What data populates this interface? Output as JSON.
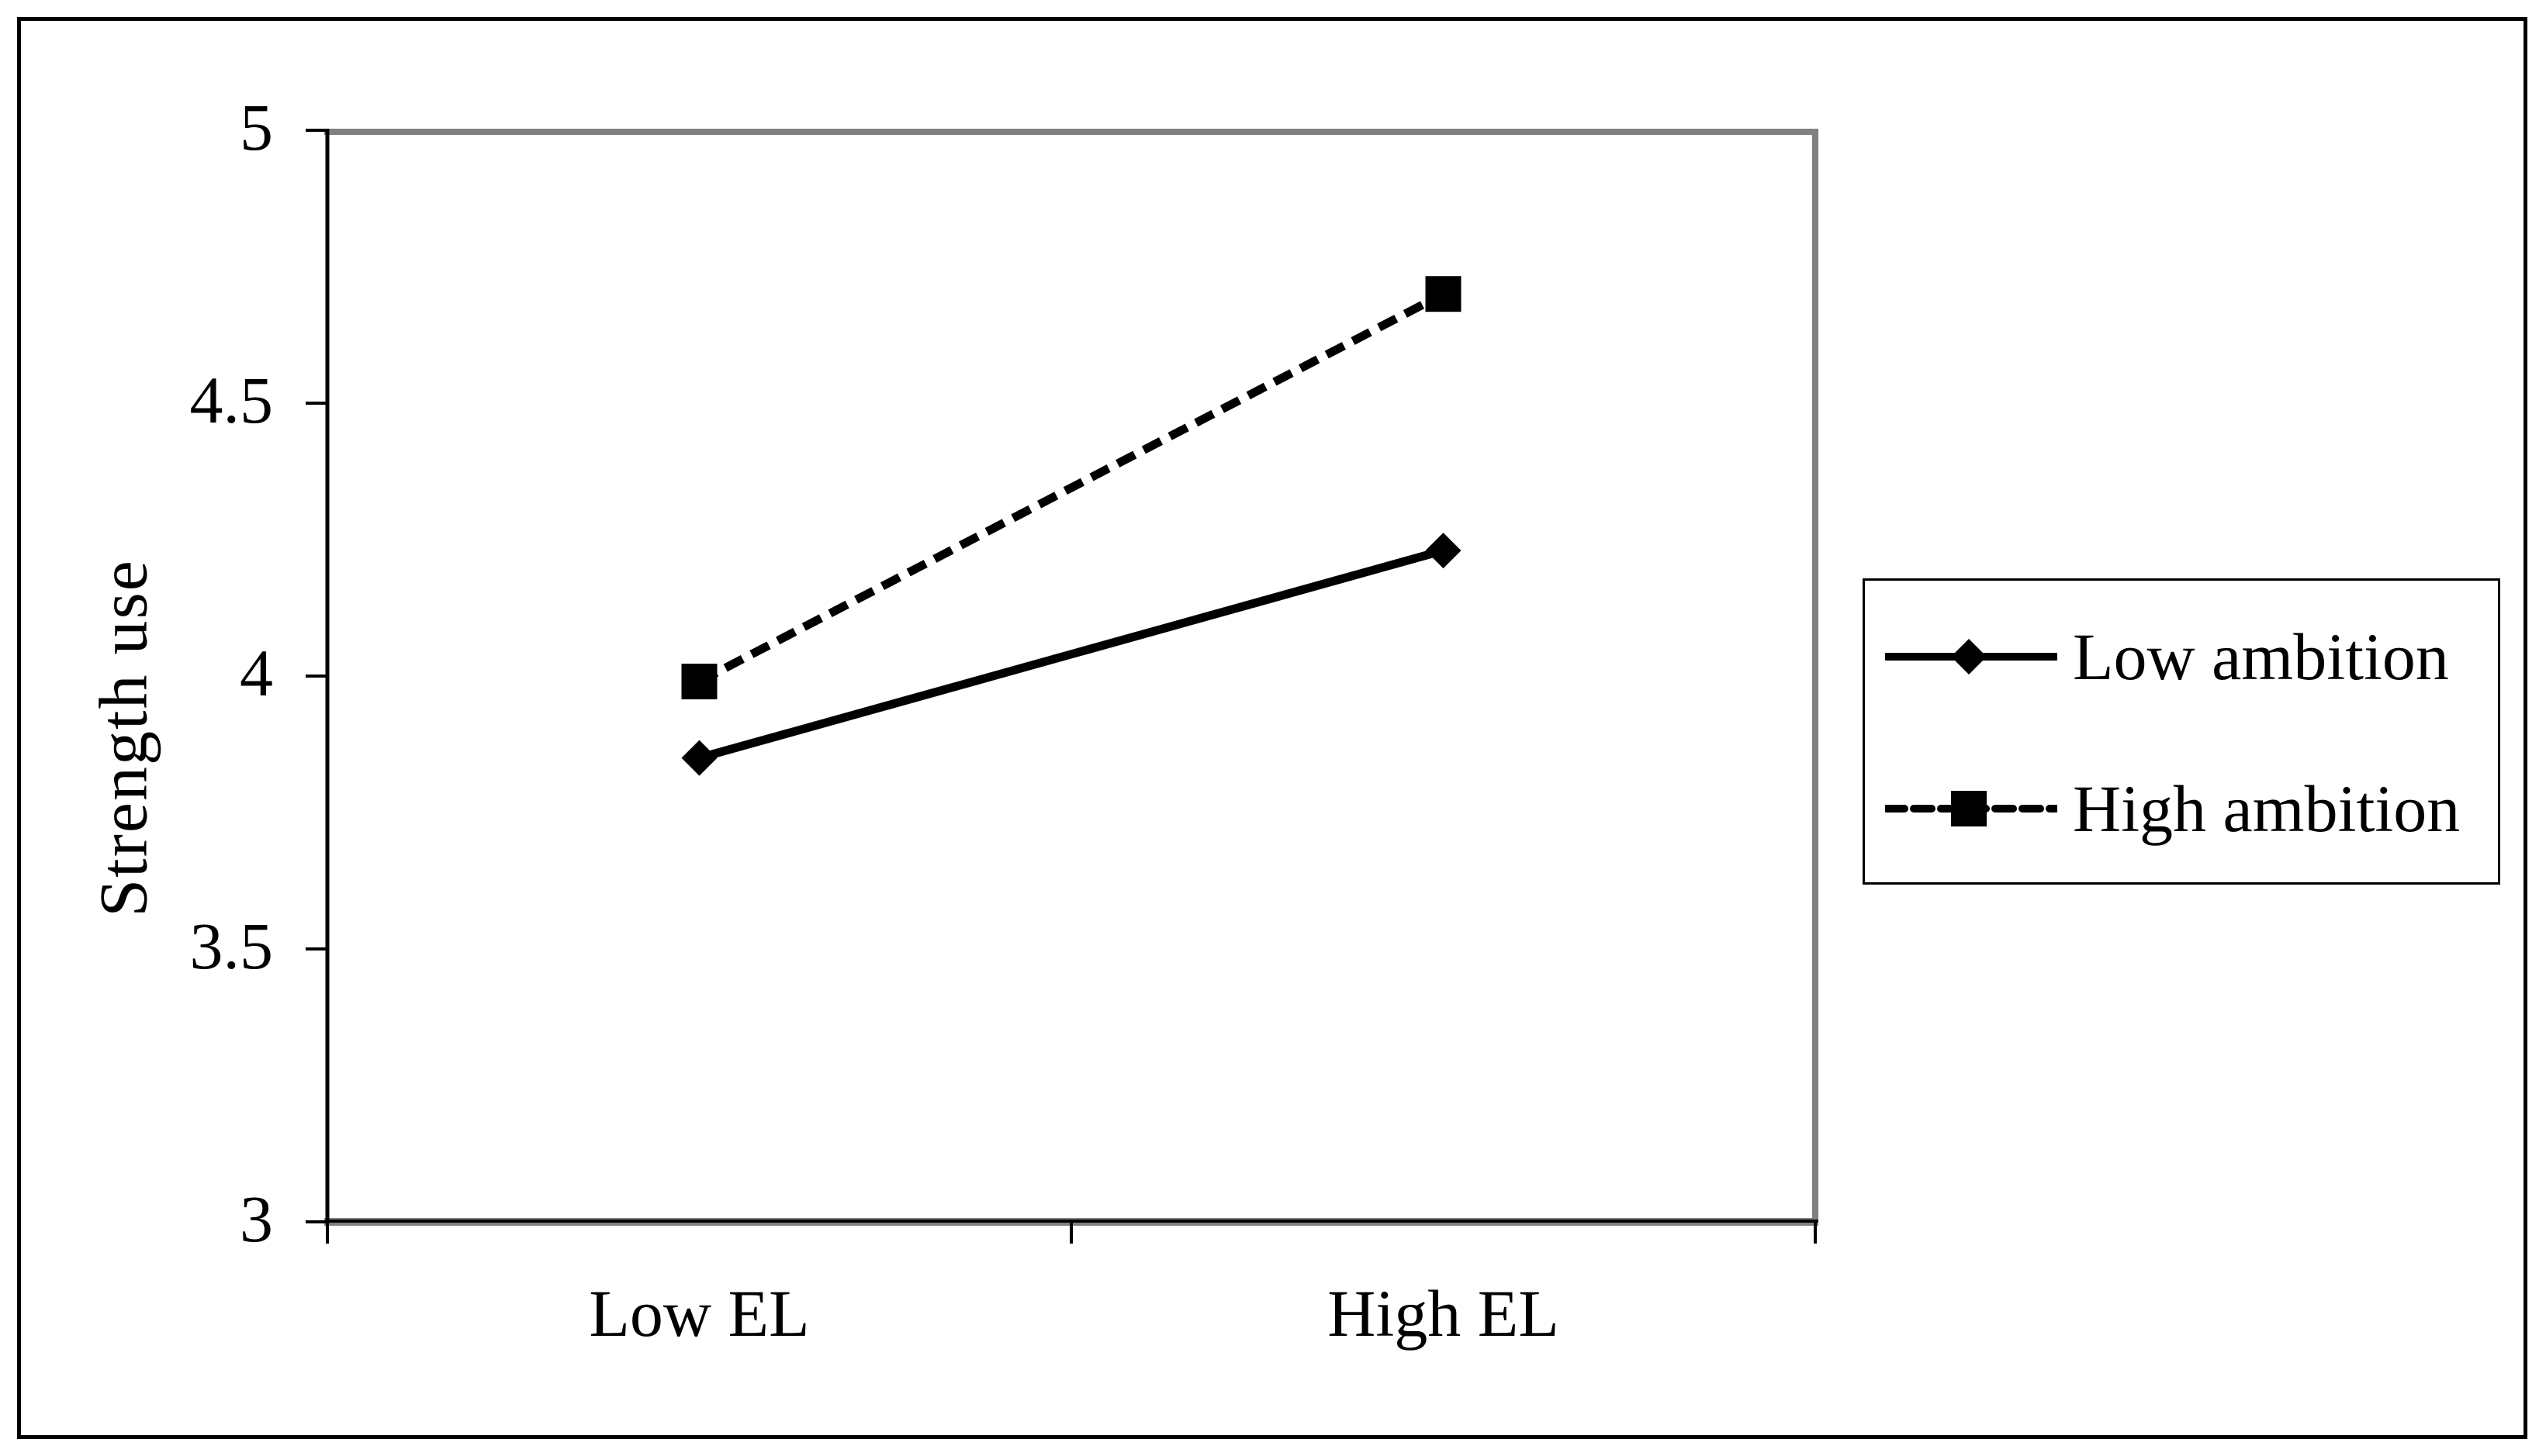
{
  "figure": {
    "background_color": "#ffffff",
    "frame_color": "#000000",
    "plot_border_color": "#808080",
    "axis_color": "#000000",
    "series_color": "#000000"
  },
  "chart_data": {
    "type": "line",
    "title": "",
    "categories": [
      "Low EL",
      "High EL"
    ],
    "series": [
      {
        "name": "Low ambition",
        "values": [
          3.85,
          4.23
        ],
        "line": "solid",
        "marker": "diamond",
        "color": "#000000"
      },
      {
        "name": "High ambition",
        "values": [
          3.99,
          4.7
        ],
        "line": "dashed",
        "marker": "square",
        "color": "#000000"
      }
    ],
    "xlabel": "",
    "ylabel": "Strength use",
    "ylim": [
      3,
      5
    ],
    "yticks": [
      {
        "value": 5,
        "label": "5"
      },
      {
        "value": 4.5,
        "label": "4.5"
      },
      {
        "value": 4,
        "label": "4"
      },
      {
        "value": 3.5,
        "label": "3.5"
      },
      {
        "value": 3,
        "label": "3"
      }
    ],
    "grid": false,
    "legend_position": "right"
  }
}
